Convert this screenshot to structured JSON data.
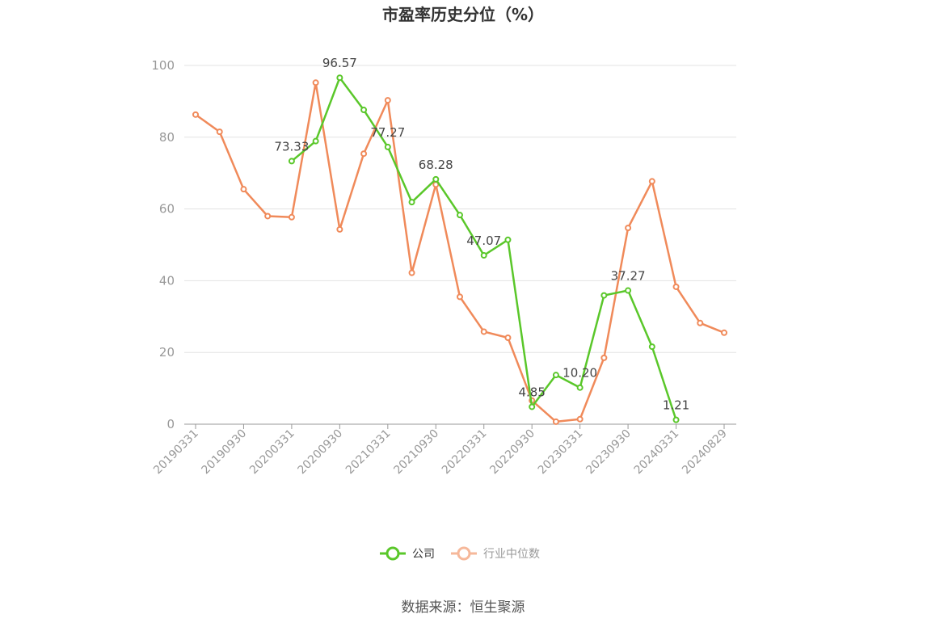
{
  "chart_data": {
    "type": "line",
    "title": "市盈率历史分位（%）",
    "ylim": [
      0,
      100
    ],
    "yticks": [
      0,
      20,
      40,
      60,
      80,
      100
    ],
    "grid": true,
    "legend_position": "bottom",
    "x_label_ticks": [
      "20190331",
      "20190930",
      "20200331",
      "20200930",
      "20210331",
      "20210930",
      "20220331",
      "20220930",
      "20230331",
      "20230930",
      "20240331",
      "20240829"
    ],
    "series": [
      {
        "name": "公司",
        "color": "#5ac72a",
        "values": [
          null,
          null,
          null,
          null,
          73.33,
          78.9,
          96.57,
          87.6,
          77.27,
          61.9,
          68.28,
          58.3,
          47.07,
          51.4,
          4.85,
          13.7,
          10.2,
          35.9,
          37.27,
          21.6,
          1.21,
          null,
          null
        ],
        "labels": [
          null,
          null,
          null,
          null,
          "73.33",
          null,
          "96.57",
          null,
          "77.27",
          null,
          "68.28",
          null,
          "47.07",
          null,
          "4.85",
          null,
          "10.20",
          null,
          "37.27",
          null,
          "1.21",
          null,
          null
        ]
      },
      {
        "name": "行业中位数",
        "color": "#f08a5a",
        "values": [
          86.3,
          81.5,
          65.5,
          58.0,
          57.7,
          95.2,
          54.3,
          75.4,
          90.3,
          42.2,
          66.8,
          35.5,
          25.8,
          24.1,
          6.6,
          0.7,
          1.4,
          18.5,
          54.7,
          67.7,
          38.3,
          28.2,
          25.5
        ]
      }
    ]
  },
  "legend": {
    "company": "公司",
    "industry": "行业中位数"
  },
  "source": "数据来源：恒生聚源"
}
